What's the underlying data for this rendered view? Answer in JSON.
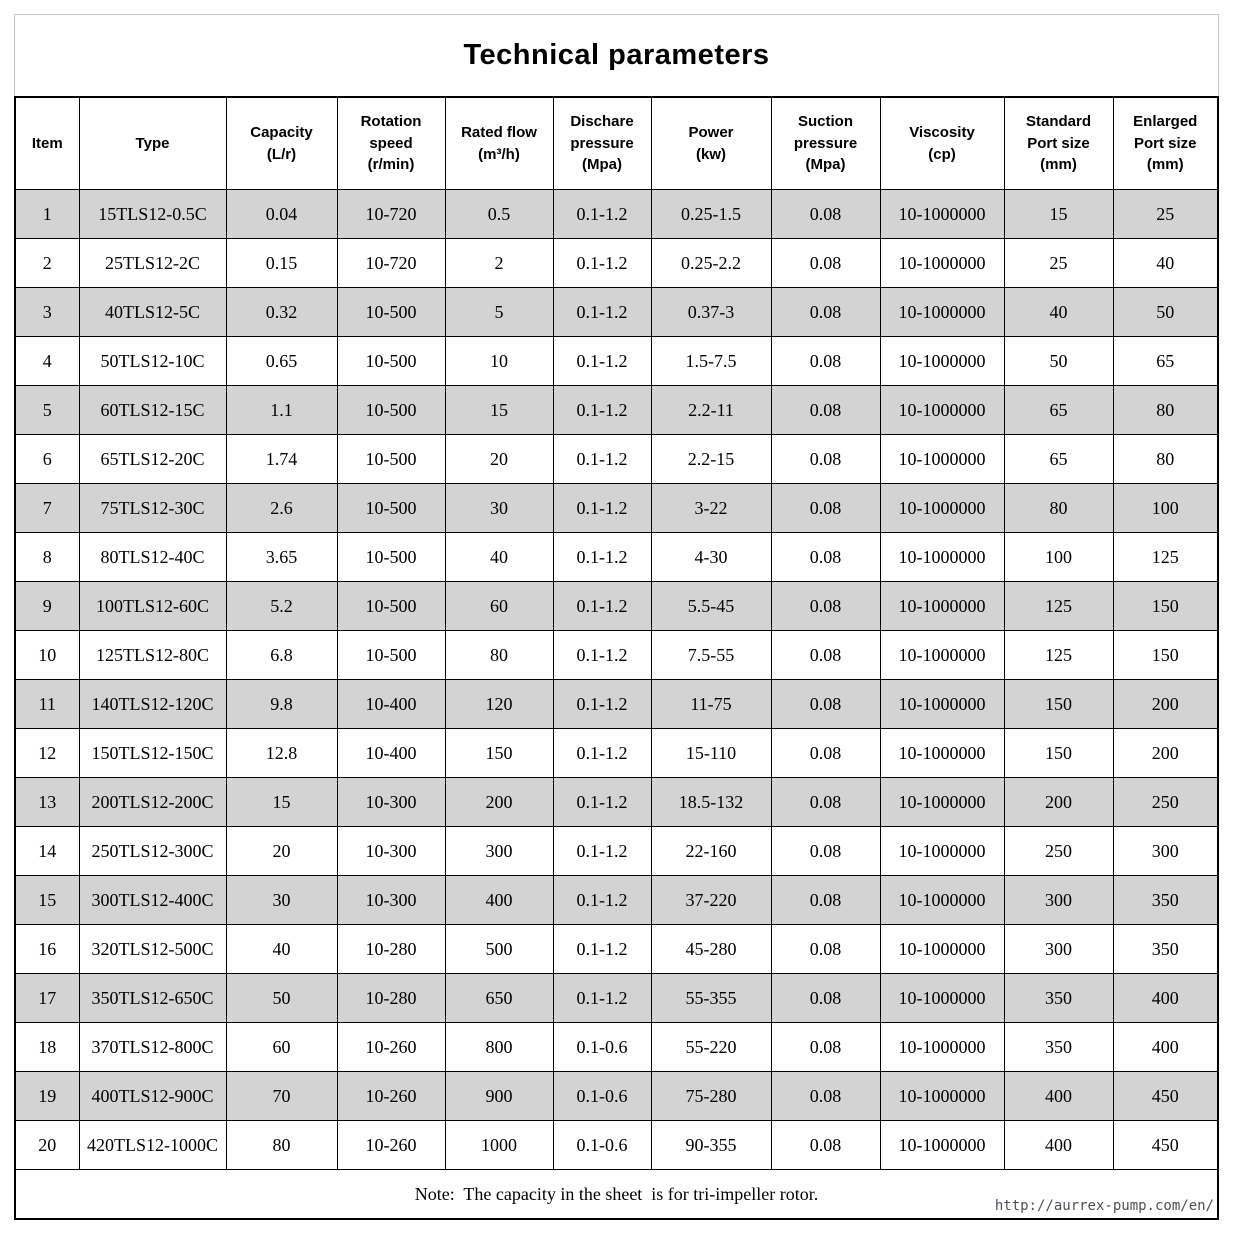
{
  "title": "Technical parameters",
  "table": {
    "columns": [
      {
        "label": "Item"
      },
      {
        "label": "Type"
      },
      {
        "label": "Capacity\n(L/r)"
      },
      {
        "label": "Rotation\nspeed\n(r/min)"
      },
      {
        "label": "Rated flow\n(m³/h)"
      },
      {
        "label": "Dischare\npressure\n(Mpa)"
      },
      {
        "label": "Power\n(kw)"
      },
      {
        "label": "Suction\npressure\n(Mpa)"
      },
      {
        "label": "Viscosity\n(cp)"
      },
      {
        "label": "Standard\nPort size\n(mm)"
      },
      {
        "label": "Enlarged\nPort size\n(mm)"
      }
    ],
    "rows": [
      [
        "1",
        "15TLS12-0.5C",
        "0.04",
        "10-720",
        "0.5",
        "0.1-1.2",
        "0.25-1.5",
        "0.08",
        "10-1000000",
        "15",
        "25"
      ],
      [
        "2",
        "25TLS12-2C",
        "0.15",
        "10-720",
        "2",
        "0.1-1.2",
        "0.25-2.2",
        "0.08",
        "10-1000000",
        "25",
        "40"
      ],
      [
        "3",
        "40TLS12-5C",
        "0.32",
        "10-500",
        "5",
        "0.1-1.2",
        "0.37-3",
        "0.08",
        "10-1000000",
        "40",
        "50"
      ],
      [
        "4",
        "50TLS12-10C",
        "0.65",
        "10-500",
        "10",
        "0.1-1.2",
        "1.5-7.5",
        "0.08",
        "10-1000000",
        "50",
        "65"
      ],
      [
        "5",
        "60TLS12-15C",
        "1.1",
        "10-500",
        "15",
        "0.1-1.2",
        "2.2-11",
        "0.08",
        "10-1000000",
        "65",
        "80"
      ],
      [
        "6",
        "65TLS12-20C",
        "1.74",
        "10-500",
        "20",
        "0.1-1.2",
        "2.2-15",
        "0.08",
        "10-1000000",
        "65",
        "80"
      ],
      [
        "7",
        "75TLS12-30C",
        "2.6",
        "10-500",
        "30",
        "0.1-1.2",
        "3-22",
        "0.08",
        "10-1000000",
        "80",
        "100"
      ],
      [
        "8",
        "80TLS12-40C",
        "3.65",
        "10-500",
        "40",
        "0.1-1.2",
        "4-30",
        "0.08",
        "10-1000000",
        "100",
        "125"
      ],
      [
        "9",
        "100TLS12-60C",
        "5.2",
        "10-500",
        "60",
        "0.1-1.2",
        "5.5-45",
        "0.08",
        "10-1000000",
        "125",
        "150"
      ],
      [
        "10",
        "125TLS12-80C",
        "6.8",
        "10-500",
        "80",
        "0.1-1.2",
        "7.5-55",
        "0.08",
        "10-1000000",
        "125",
        "150"
      ],
      [
        "11",
        "140TLS12-120C",
        "9.8",
        "10-400",
        "120",
        "0.1-1.2",
        "11-75",
        "0.08",
        "10-1000000",
        "150",
        "200"
      ],
      [
        "12",
        "150TLS12-150C",
        "12.8",
        "10-400",
        "150",
        "0.1-1.2",
        "15-110",
        "0.08",
        "10-1000000",
        "150",
        "200"
      ],
      [
        "13",
        "200TLS12-200C",
        "15",
        "10-300",
        "200",
        "0.1-1.2",
        "18.5-132",
        "0.08",
        "10-1000000",
        "200",
        "250"
      ],
      [
        "14",
        "250TLS12-300C",
        "20",
        "10-300",
        "300",
        "0.1-1.2",
        "22-160",
        "0.08",
        "10-1000000",
        "250",
        "300"
      ],
      [
        "15",
        "300TLS12-400C",
        "30",
        "10-300",
        "400",
        "0.1-1.2",
        "37-220",
        "0.08",
        "10-1000000",
        "300",
        "350"
      ],
      [
        "16",
        "320TLS12-500C",
        "40",
        "10-280",
        "500",
        "0.1-1.2",
        "45-280",
        "0.08",
        "10-1000000",
        "300",
        "350"
      ],
      [
        "17",
        "350TLS12-650C",
        "50",
        "10-280",
        "650",
        "0.1-1.2",
        "55-355",
        "0.08",
        "10-1000000",
        "350",
        "400"
      ],
      [
        "18",
        "370TLS12-800C",
        "60",
        "10-260",
        "800",
        "0.1-0.6",
        "55-220",
        "0.08",
        "10-1000000",
        "350",
        "400"
      ],
      [
        "19",
        "400TLS12-900C",
        "70",
        "10-260",
        "900",
        "0.1-0.6",
        "75-280",
        "0.08",
        "10-1000000",
        "400",
        "450"
      ],
      [
        "20",
        "420TLS12-1000C",
        "80",
        "10-260",
        "1000",
        "0.1-0.6",
        "90-355",
        "0.08",
        "10-1000000",
        "400",
        "450"
      ]
    ]
  },
  "note": "Note:  The capacity in the sheet  is for tri-impeller rotor.",
  "watermark": "http://aurrex-pump.com/en/",
  "colors": {
    "row_shaded": "#d3d3d3",
    "row_plain": "#ffffff",
    "table_border": "#000000",
    "title_frame": "#c9c9c9",
    "watermark_text": "#4f4f55"
  }
}
